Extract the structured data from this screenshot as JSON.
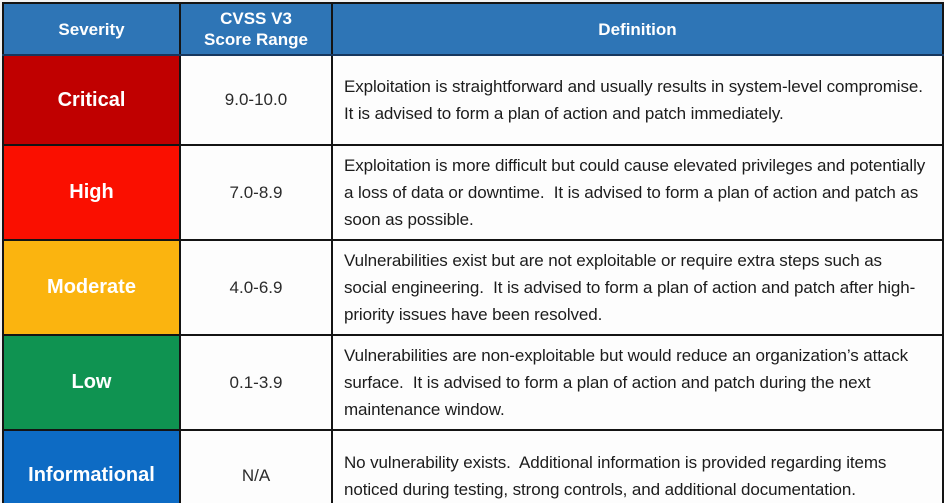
{
  "table": {
    "header_bg": "#2E75B6",
    "border_color": "#141414",
    "headers": [
      {
        "label": "Severity"
      },
      {
        "label": "CVSS V3 Score Range"
      },
      {
        "label": "Definition"
      }
    ],
    "rows": [
      {
        "severity": "Critical",
        "color": "#C00000",
        "score": "9.0-10.0",
        "definition": "Exploitation is straightforward and usually results in system-level compromise.  It is advised to form a plan of action and patch immediately."
      },
      {
        "severity": "High",
        "color": "#FA0F00",
        "score": "7.0-8.9",
        "definition": "Exploitation is more difficult but could cause elevated privileges and potentially a loss of data or downtime.  It is advised to form a plan of action and patch as soon as possible."
      },
      {
        "severity": "Moderate",
        "color": "#FBB40F",
        "score": "4.0-6.9",
        "definition": "Vulnerabilities exist but are not exploitable or require extra steps such as social engineering.  It is advised to form a plan of action and patch after high-priority issues have been resolved."
      },
      {
        "severity": "Low",
        "color": "#0F9351",
        "score": "0.1-3.9",
        "definition": "Vulnerabilities are non-exploitable but would reduce an organization’s attack surface.  It is advised to form a plan of action and patch during the next maintenance window."
      },
      {
        "severity": "Informational",
        "color": "#0D6BC4",
        "score": "N/A",
        "definition": "No vulnerability exists.  Additional information is provided regarding items noticed during testing, strong controls, and additional documentation."
      }
    ]
  }
}
